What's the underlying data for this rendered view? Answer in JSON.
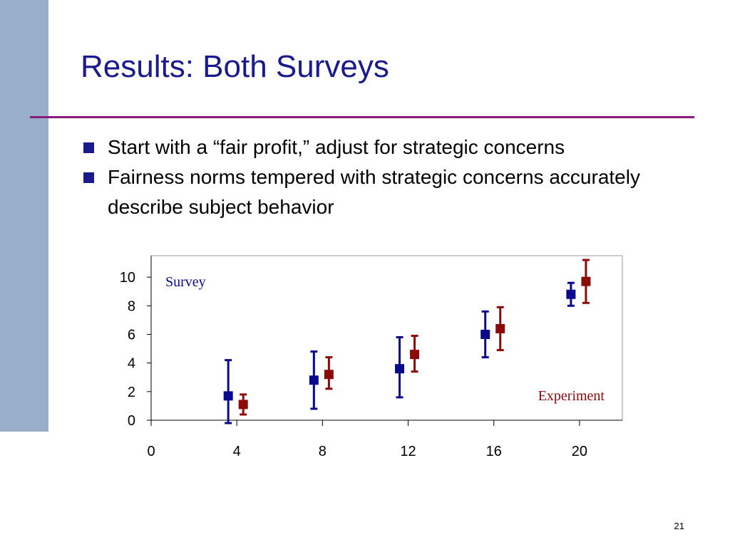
{
  "slide": {
    "title": "Results: Both Surveys",
    "bullets": [
      "Start with a “fair profit,” adjust for strategic concerns",
      "Fairness norms tempered with strategic concerns accurately describe subject behavior"
    ],
    "slide_number": "21",
    "colors": {
      "title": "#1a1a8c",
      "rule": "#8b1a7e",
      "side_bar": "#98aecb",
      "survey": "#0a0a8c",
      "experiment": "#8b0a0a"
    }
  },
  "chart_data": {
    "type": "scatter",
    "title": "",
    "xlabel": "",
    "ylabel": "",
    "xlim": [
      0,
      22
    ],
    "ylim": [
      0,
      11.5
    ],
    "x_ticks": [
      0,
      4,
      8,
      12,
      16,
      20
    ],
    "y_ticks": [
      0,
      2,
      4,
      6,
      8,
      10
    ],
    "grid": false,
    "series": [
      {
        "name": "Survey",
        "color": "#0a0a8c",
        "points": [
          {
            "x": 3.6,
            "y": 1.7,
            "low": -0.2,
            "high": 4.2
          },
          {
            "x": 7.6,
            "y": 2.8,
            "low": 0.8,
            "high": 4.8
          },
          {
            "x": 11.6,
            "y": 3.6,
            "low": 1.6,
            "high": 5.8
          },
          {
            "x": 15.6,
            "y": 6.0,
            "low": 4.4,
            "high": 7.6
          },
          {
            "x": 19.6,
            "y": 8.8,
            "low": 8.0,
            "high": 9.6
          }
        ]
      },
      {
        "name": "Experiment",
        "color": "#8b0a0a",
        "points": [
          {
            "x": 4.3,
            "y": 1.1,
            "low": 0.4,
            "high": 1.8
          },
          {
            "x": 8.3,
            "y": 3.2,
            "low": 2.2,
            "high": 4.4
          },
          {
            "x": 12.3,
            "y": 4.6,
            "low": 3.4,
            "high": 5.9
          },
          {
            "x": 16.3,
            "y": 6.4,
            "low": 4.9,
            "high": 7.9
          },
          {
            "x": 20.3,
            "y": 9.7,
            "low": 8.2,
            "high": 11.2
          }
        ]
      }
    ]
  }
}
